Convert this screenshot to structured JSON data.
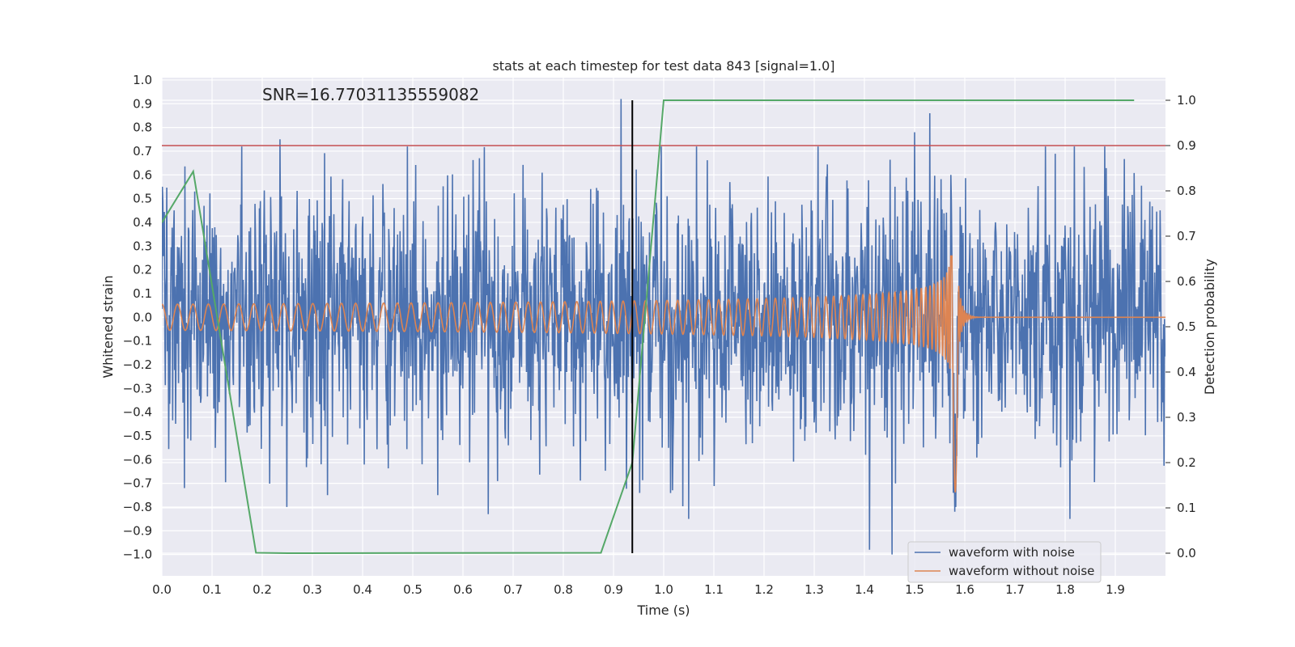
{
  "chart_data": {
    "type": "line",
    "title": "stats at each timestep for test data 843 [signal=1.0]",
    "xlabel": "Time (s)",
    "ylabel": "Whitened strain",
    "ylabel_right": "Detection probability",
    "annotation": "SNR=16.77031135559082",
    "xlim": [
      0.0,
      2.0
    ],
    "ylim": [
      -1.09,
      1.01
    ],
    "ylim_right": [
      -0.05,
      1.05
    ],
    "xticks": [
      "0.0",
      "0.1",
      "0.2",
      "0.3",
      "0.4",
      "0.5",
      "0.6",
      "0.7",
      "0.8",
      "0.9",
      "1.0",
      "1.1",
      "1.2",
      "1.3",
      "1.4",
      "1.5",
      "1.6",
      "1.7",
      "1.8",
      "1.9"
    ],
    "yticks": [
      "1.0",
      "0.9",
      "0.8",
      "0.7",
      "0.6",
      "0.5",
      "0.4",
      "0.3",
      "0.2",
      "0.1",
      "0.0",
      "−0.1",
      "−0.2",
      "−0.3",
      "−0.4",
      "−0.5",
      "−0.6",
      "−0.7",
      "−0.8",
      "−0.9",
      "−1.0"
    ],
    "yticks_right": [
      "1.0",
      "0.9",
      "0.8",
      "0.7",
      "0.6",
      "0.5",
      "0.4",
      "0.3",
      "0.2",
      "0.1",
      "0.0"
    ],
    "legend": {
      "position": "lower-right",
      "entries": [
        "waveform with noise",
        "waveform without noise"
      ]
    },
    "grid": true,
    "background": "#eaeaf2",
    "colors": {
      "noisy": "#4c72b0",
      "clean": "#dd8452",
      "probability": "#55a868",
      "threshold": "#c44e52",
      "marker": "#000000"
    },
    "series": [
      {
        "name": "waveform with noise",
        "axis": "left",
        "noise_amplitude_std": 0.27,
        "peaks": [
          [
            0.235,
            0.75
          ],
          [
            0.915,
            0.92
          ],
          [
            1.53,
            0.86
          ],
          [
            1.5,
            0.78
          ],
          [
            1.455,
            -1.0
          ],
          [
            1.41,
            -0.98
          ],
          [
            1.58,
            -0.82
          ],
          [
            1.81,
            -0.85
          ],
          [
            0.65,
            -0.83
          ],
          [
            0.33,
            -0.75
          ],
          [
            0.55,
            -0.75
          ],
          [
            1.05,
            -0.85
          ],
          [
            0.065,
            0.53
          ],
          [
            0.045,
            -0.72
          ]
        ]
      },
      {
        "name": "waveform without noise",
        "axis": "left",
        "chirp": {
          "start_freq_hz": 32,
          "merger_time": 1.575,
          "amplitude_start": 0.055,
          "amplitude_merger": 0.55,
          "ringdown_end": 1.62,
          "merger_min": -0.82
        }
      },
      {
        "axis": "right",
        "x": [
          0.0,
          0.0625,
          0.1875,
          0.25,
          0.875,
          0.9375,
          1.0,
          1.9375
        ],
        "y": [
          0.73,
          0.843,
          0.001,
          0.0,
          0.001,
          0.2,
          1.0,
          1.0
        ]
      }
    ],
    "threshold_right": 0.9,
    "vertical_marker_x": 0.9375,
    "vertical_marker_yrange": [
      0.0,
      1.0
    ]
  }
}
